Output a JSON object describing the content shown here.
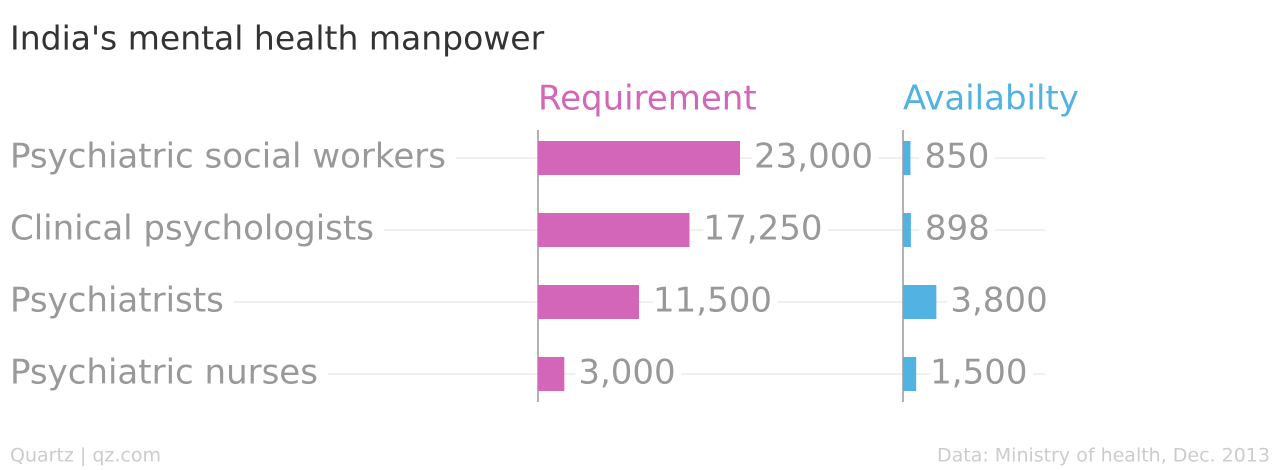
{
  "chart_data": {
    "type": "bar",
    "orientation": "horizontal",
    "title": "India's mental health manpower",
    "categories": [
      "Psychiatric social workers",
      "Clinical psychologists",
      "Psychiatrists",
      "Psychiatric nurses"
    ],
    "series": [
      {
        "name": "Requirement",
        "color": "#d366b8",
        "values": [
          23000,
          17250,
          11500,
          3000
        ],
        "value_labels": [
          "23,000",
          "17,250",
          "11,500",
          "3,000"
        ]
      },
      {
        "name": "Availabilty",
        "color": "#52b2e2",
        "values": [
          850,
          898,
          3800,
          1500
        ],
        "value_labels": [
          "850",
          "898",
          "3,800",
          "1,500"
        ]
      }
    ],
    "source": "Quartz | qz.com",
    "note": "Data: Ministry of health, Dec. 2013"
  }
}
